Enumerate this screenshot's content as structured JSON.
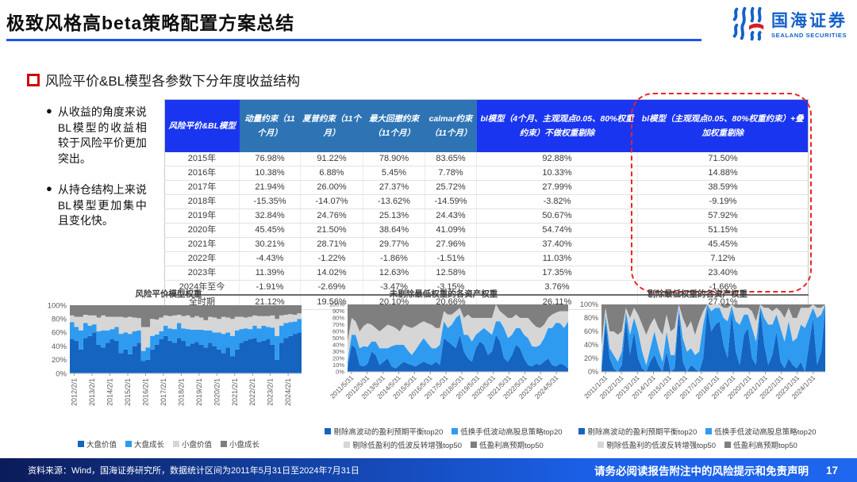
{
  "header": {
    "title": "极致风格高beta策略配置方案总结",
    "logo_cn": "国海证券",
    "logo_en": "SEALAND SECURITIES"
  },
  "section": {
    "title": "风险平价&BL模型各参数下分年度收益结构",
    "bullets": [
      "从收益的角度来说BL模型的收益相较于风险平价更加突出。",
      "从持仓结构上来说BL模型更加集中且变化快。"
    ]
  },
  "table": {
    "columns": [
      "风险平价&BL模型",
      "动量约束（11个月）",
      "夏普约束（11个月）",
      "最大回撤约束（11个月）",
      "calmar约束（11个月）",
      "bl模型（4个月、主观观点0.05、80%权重约束）不做权重剔除",
      "bl模型（主观观点0.05、80%权重约束）+叠加权重剔除"
    ],
    "rows": [
      [
        "2015年",
        "76.98%",
        "91.22%",
        "78.90%",
        "83.65%",
        "92.88%",
        "71.50%"
      ],
      [
        "2016年",
        "10.38%",
        "6.88%",
        "5.45%",
        "7.78%",
        "10.33%",
        "14.88%"
      ],
      [
        "2017年",
        "21.94%",
        "26.00%",
        "27.37%",
        "25.72%",
        "27.99%",
        "38.59%"
      ],
      [
        "2018年",
        "-15.35%",
        "-14.07%",
        "-13.62%",
        "-14.59%",
        "-3.82%",
        "-9.19%"
      ],
      [
        "2019年",
        "32.84%",
        "24.76%",
        "25.13%",
        "24.43%",
        "50.67%",
        "57.92%"
      ],
      [
        "2020年",
        "45.45%",
        "21.50%",
        "38.64%",
        "41.09%",
        "54.74%",
        "51.15%"
      ],
      [
        "2021年",
        "30.21%",
        "28.71%",
        "29.77%",
        "27.96%",
        "37.40%",
        "45.45%"
      ],
      [
        "2022年",
        "-4.43%",
        "-1.22%",
        "-1.86%",
        "-1.51%",
        "11.03%",
        "7.12%"
      ],
      [
        "2023年",
        "11.39%",
        "14.02%",
        "12.63%",
        "12.58%",
        "17.35%",
        "23.40%"
      ],
      [
        "2024年至今",
        "-1.91%",
        "-2.69%",
        "-3.47%",
        "-3.15%",
        "3.76%",
        "-1.66%"
      ],
      [
        "全时期",
        "21.12%",
        "19.56%",
        "20.10%",
        "20.66%",
        "26.11%",
        "27.01%"
      ]
    ],
    "highlight_note": "最后一列被红色虚线圈出"
  },
  "chart_data": [
    {
      "type": "area",
      "stacked": true,
      "title": "风险平价模型权重",
      "ylim": [
        0,
        100
      ],
      "y_ticks": [
        "0%",
        "20%",
        "40%",
        "60%",
        "80%",
        "100%"
      ],
      "x_ticks": [
        "2012/2/1",
        "2013/2/1",
        "2014/2/1",
        "2015/2/1",
        "2016/2/1",
        "2017/2/1",
        "2018/2/1",
        "2019/2/1",
        "2020/2/1",
        "2021/2/1",
        "2022/2/1",
        "2023/2/1",
        "2024/2/1"
      ],
      "series": [
        {
          "name": "大盘价值",
          "color": "#1464c0",
          "values": [
            50,
            48,
            35,
            52,
            55,
            60,
            42,
            38,
            45,
            50,
            48,
            30,
            35,
            28,
            40,
            45,
            18,
            20,
            35,
            42,
            50,
            55,
            48,
            45,
            52,
            48,
            40,
            44,
            46,
            42,
            38,
            45,
            40,
            35,
            30,
            38,
            25,
            35,
            45,
            48,
            50,
            52,
            46,
            48,
            50,
            42,
            20,
            45,
            52,
            55,
            58,
            60
          ]
        },
        {
          "name": "大盘成长",
          "color": "#2e9bf0",
          "values": [
            25,
            20,
            28,
            22,
            15,
            12,
            20,
            25,
            18,
            15,
            20,
            28,
            25,
            30,
            22,
            18,
            15,
            18,
            20,
            15,
            12,
            15,
            18,
            20,
            22,
            18,
            25,
            20,
            18,
            22,
            25,
            18,
            20,
            25,
            28,
            22,
            30,
            28,
            20,
            18,
            15,
            18,
            20,
            22,
            18,
            25,
            35,
            25,
            22,
            20,
            18,
            20
          ]
        },
        {
          "name": "小盘价值",
          "color": "#d6d6d6",
          "values": [
            10,
            15,
            20,
            12,
            15,
            13,
            20,
            22,
            20,
            18,
            15,
            25,
            22,
            25,
            20,
            18,
            35,
            30,
            25,
            22,
            20,
            15,
            18,
            20,
            12,
            18,
            20,
            18,
            20,
            18,
            15,
            20,
            22,
            20,
            25,
            22,
            25,
            20,
            18,
            16,
            18,
            15,
            18,
            14,
            16,
            18,
            25,
            15,
            12,
            12,
            10,
            8
          ]
        },
        {
          "name": "小盘成长",
          "color": "#7f7f7f",
          "values": [
            15,
            17,
            17,
            14,
            15,
            15,
            18,
            15,
            17,
            17,
            17,
            17,
            18,
            17,
            18,
            19,
            32,
            32,
            20,
            21,
            18,
            15,
            16,
            15,
            14,
            16,
            15,
            18,
            16,
            18,
            22,
            17,
            18,
            20,
            17,
            18,
            20,
            17,
            17,
            18,
            17,
            15,
            16,
            16,
            16,
            15,
            20,
            15,
            14,
            13,
            14,
            12
          ]
        }
      ]
    },
    {
      "type": "area",
      "stacked": true,
      "title": "未剔除最低权重的各资产权重",
      "ylim": [
        0,
        100
      ],
      "y_ticks": [
        "0%",
        "10%",
        "20%",
        "30%",
        "40%",
        "50%",
        "60%",
        "70%",
        "80%",
        "90%",
        "100%"
      ],
      "x_ticks": [
        "2011/5/31",
        "2012/5/31",
        "2013/5/31",
        "2014/5/31",
        "2015/5/31",
        "2016/5/31",
        "2017/5/31",
        "2018/5/31",
        "2019/5/31",
        "2020/5/31",
        "2021/5/31",
        "2022/5/31",
        "2023/5/31",
        "2024/5/31"
      ],
      "series": [
        {
          "name": "剔除高波动的盈利预期平衡top20",
          "color": "#1464c0",
          "values": [
            5,
            40,
            35,
            10,
            8,
            12,
            30,
            25,
            10,
            15,
            20,
            8,
            5,
            10,
            15,
            12,
            10,
            8,
            12,
            15,
            12,
            10,
            15,
            10,
            50,
            45,
            40,
            35,
            55,
            30,
            20,
            15,
            35,
            45,
            40,
            25,
            30,
            55,
            45,
            20,
            15,
            25,
            40,
            35,
            20,
            10,
            8,
            12,
            10,
            15,
            20,
            10,
            8,
            12,
            10,
            5
          ]
        },
        {
          "name": "低换手低波动高股息策略top20",
          "color": "#2e9bf0",
          "values": [
            10,
            15,
            20,
            25,
            30,
            25,
            15,
            20,
            25,
            20,
            15,
            30,
            35,
            30,
            25,
            20,
            15,
            25,
            30,
            35,
            30,
            25,
            20,
            30,
            25,
            20,
            30,
            45,
            30,
            25,
            35,
            30,
            20,
            15,
            25,
            35,
            25,
            20,
            30,
            45,
            35,
            30,
            25,
            30,
            35,
            40,
            30,
            25,
            30,
            35,
            45,
            55,
            65,
            60,
            55,
            70
          ]
        },
        {
          "name": "剔除低盈利的低波反转增强top50",
          "color": "#d6d6d6",
          "values": [
            30,
            25,
            20,
            25,
            30,
            35,
            25,
            20,
            25,
            30,
            35,
            30,
            25,
            20,
            30,
            35,
            40,
            35,
            30,
            25,
            30,
            35,
            30,
            25,
            15,
            20,
            15,
            10,
            10,
            25,
            30,
            35,
            25,
            20,
            15,
            20,
            25,
            25,
            15,
            20,
            30,
            25,
            20,
            15,
            25,
            30,
            35,
            30,
            25,
            20,
            15,
            20,
            15,
            18,
            25,
            15
          ]
        },
        {
          "name": "低盈利高预期top50",
          "color": "#7f7f7f",
          "values": [
            55,
            20,
            25,
            40,
            32,
            28,
            30,
            35,
            40,
            35,
            30,
            32,
            35,
            40,
            30,
            33,
            35,
            32,
            28,
            25,
            28,
            30,
            35,
            35,
            10,
            15,
            15,
            10,
            5,
            20,
            15,
            20,
            20,
            20,
            20,
            20,
            20,
            0,
            10,
            15,
            20,
            20,
            15,
            20,
            20,
            20,
            27,
            33,
            35,
            30,
            20,
            15,
            12,
            10,
            10,
            10
          ]
        }
      ]
    },
    {
      "type": "area",
      "stacked": true,
      "title": "剔除最低权重的各资产权重",
      "ylim": [
        0,
        100
      ],
      "y_ticks": [
        "0%",
        "20%",
        "40%",
        "60%",
        "80%",
        "100%"
      ],
      "x_ticks": [
        "2011/1/31",
        "2012/1/31",
        "2013/1/31",
        "2014/1/31",
        "2015/1/31",
        "2016/1/31",
        "2017/1/31",
        "2018/1/31",
        "2019/1/31",
        "2020/1/31",
        "2021/1/31",
        "2022/1/31",
        "2023/1/31",
        "2024/1/31"
      ],
      "series": [
        {
          "name": "剔除高波动的盈利预期平衡top20",
          "color": "#1464c0",
          "values": [
            0,
            75,
            20,
            5,
            0,
            10,
            80,
            25,
            60,
            20,
            5,
            0,
            15,
            25,
            10,
            0,
            30,
            0,
            5,
            90,
            15,
            0,
            10,
            5,
            0,
            20,
            95,
            60,
            70,
            75,
            40,
            20,
            90,
            30,
            10,
            55,
            65,
            20,
            10,
            95,
            40,
            10,
            25,
            60,
            15,
            5,
            20,
            10,
            5,
            15,
            0,
            40,
            80,
            10,
            30,
            95
          ]
        },
        {
          "name": "低换手低波动高股息策略top20",
          "color": "#2e9bf0",
          "values": [
            10,
            10,
            15,
            20,
            15,
            20,
            10,
            30,
            20,
            40,
            25,
            10,
            20,
            35,
            25,
            15,
            30,
            25,
            20,
            5,
            35,
            30,
            25,
            20,
            30,
            50,
            5,
            30,
            25,
            20,
            40,
            55,
            8,
            45,
            60,
            30,
            20,
            45,
            35,
            3,
            40,
            60,
            45,
            25,
            50,
            40,
            55,
            35,
            45,
            55,
            65,
            40,
            15,
            70,
            55,
            5
          ]
        },
        {
          "name": "剔除低盈利的低波反转增强top50",
          "color": "#d6d6d6",
          "values": [
            30,
            10,
            25,
            35,
            40,
            30,
            5,
            25,
            15,
            25,
            40,
            45,
            35,
            20,
            30,
            40,
            25,
            35,
            40,
            5,
            30,
            35,
            40,
            30,
            45,
            20,
            0,
            10,
            5,
            5,
            15,
            20,
            2,
            20,
            25,
            10,
            10,
            25,
            30,
            2,
            15,
            25,
            20,
            10,
            25,
            35,
            20,
            35,
            30,
            25,
            30,
            15,
            5,
            15,
            10,
            0
          ]
        },
        {
          "name": "低盈利高预期top50",
          "color": "#7f7f7f",
          "values": [
            60,
            5,
            40,
            40,
            45,
            40,
            5,
            20,
            5,
            15,
            30,
            45,
            30,
            20,
            35,
            45,
            15,
            40,
            35,
            0,
            20,
            35,
            25,
            45,
            25,
            10,
            0,
            0,
            0,
            0,
            5,
            5,
            0,
            5,
            5,
            5,
            5,
            10,
            25,
            0,
            5,
            5,
            10,
            5,
            10,
            20,
            5,
            20,
            20,
            5,
            5,
            5,
            0,
            5,
            5,
            0
          ]
        }
      ]
    }
  ],
  "footer": {
    "source": "资料来源：Wind，国海证券研究所，数据统计区间为2011年5月31日至2024年7月31日",
    "disclaimer": "请务必阅读报告附注中的风险提示和免责声明",
    "page": "17"
  },
  "colors": {
    "accent_blue": "#1a35f0",
    "steel_blue": "#2e74b5",
    "title_rule_blue": "#1e56e8",
    "highlight_red": "#ee2323",
    "logo_blue": "#1461c8",
    "series": [
      "#1464c0",
      "#2e9bf0",
      "#d6d6d6",
      "#7f7f7f"
    ]
  }
}
